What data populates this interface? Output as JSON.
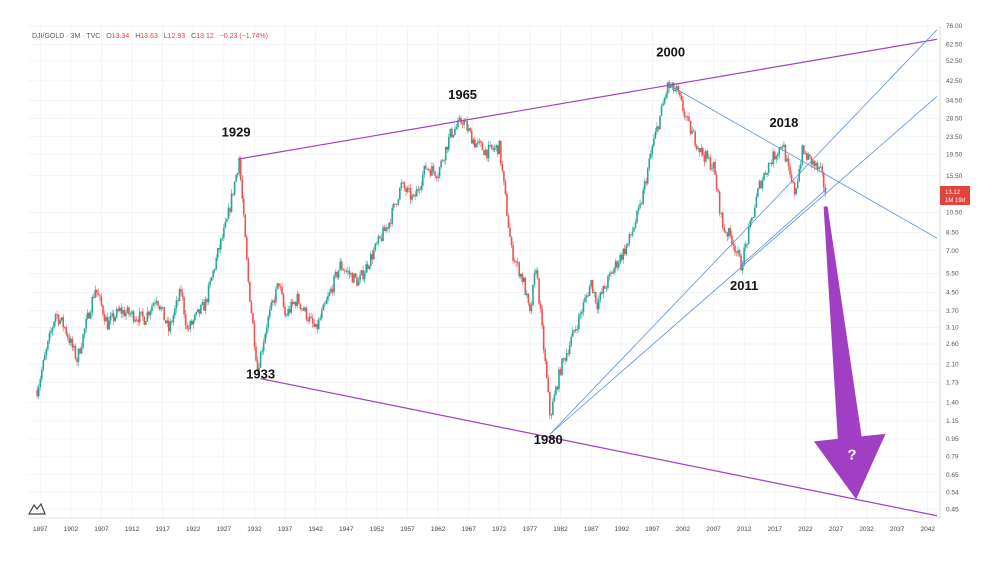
{
  "header": {
    "symbol": "DJI/GOLD · 3M · TVC",
    "o_label": "O",
    "o_value": "13.34",
    "h_label": "H",
    "h_value": "13.63",
    "l_label": "L",
    "l_value": "12.93",
    "c_label": "C",
    "c_value": "13.12",
    "change": "−0.23 (−1.74%)"
  },
  "price_badge": {
    "value": "13.12",
    "countdown": "1M 19d",
    "color": "#e0443c"
  },
  "question_mark": "?",
  "colors": {
    "up": "#26a69a",
    "down": "#ef5350",
    "channel": "#a040c8",
    "trend": "#5b8fe0",
    "arrow": "#9b35c0"
  },
  "chart_data": {
    "type": "candlestick",
    "title": "DJI/GOLD ratio",
    "x_range": [
      1895,
      2044
    ],
    "y_scale": "log",
    "y_range": [
      0.41,
      76
    ],
    "y_ticks": [
      "76.00",
      "62.50",
      "52.50",
      "42.50",
      "34.50",
      "28.50",
      "23.50",
      "19.50",
      "15.50",
      "13.12",
      "10.50",
      "8.50",
      "7.00",
      "5.50",
      "4.50",
      "3.70",
      "3.10",
      "2.60",
      "2.10",
      "1.73",
      "1.40",
      "1.15",
      "0.95",
      "0.79",
      "0.65",
      "0.54",
      "0.45"
    ],
    "y_tick_values": [
      76,
      62.5,
      52.5,
      42.5,
      34.5,
      28.5,
      23.5,
      19.5,
      15.5,
      13.12,
      10.5,
      8.5,
      7.0,
      5.5,
      4.5,
      3.7,
      3.1,
      2.6,
      2.1,
      1.73,
      1.4,
      1.15,
      0.95,
      0.79,
      0.65,
      0.54,
      0.45
    ],
    "x_ticks": [
      "1897",
      "1902",
      "1907",
      "1912",
      "1917",
      "1922",
      "1927",
      "1932",
      "1937",
      "1942",
      "1947",
      "1952",
      "1957",
      "1962",
      "1967",
      "1972",
      "1977",
      "1982",
      "1987",
      "1992",
      "1997",
      "2002",
      "2007",
      "2012",
      "2017",
      "2022",
      "2027",
      "2032",
      "2037",
      "2042"
    ],
    "x_tick_values": [
      1897,
      1902,
      1907,
      1912,
      1917,
      1922,
      1927,
      1932,
      1937,
      1942,
      1947,
      1952,
      1957,
      1962,
      1967,
      1972,
      1977,
      1982,
      1987,
      1992,
      1997,
      2002,
      2007,
      2012,
      2017,
      2022,
      2027,
      2032,
      2037,
      2042
    ],
    "anchor_points": [
      {
        "year": 1896.5,
        "value": 1.6
      },
      {
        "year": 1899.5,
        "value": 3.6
      },
      {
        "year": 1901,
        "value": 3.1
      },
      {
        "year": 1903,
        "value": 2.2
      },
      {
        "year": 1906,
        "value": 4.7
      },
      {
        "year": 1908,
        "value": 3.2
      },
      {
        "year": 1910,
        "value": 3.7
      },
      {
        "year": 1914,
        "value": 3.4
      },
      {
        "year": 1916,
        "value": 4.3
      },
      {
        "year": 1918,
        "value": 3.0
      },
      {
        "year": 1920,
        "value": 4.6
      },
      {
        "year": 1921,
        "value": 3.0
      },
      {
        "year": 1924,
        "value": 4.0
      },
      {
        "year": 1926,
        "value": 6.8
      },
      {
        "year": 1927.5,
        "value": 9.5
      },
      {
        "year": 1929.5,
        "value": 18.5
      },
      {
        "year": 1931,
        "value": 5.0
      },
      {
        "year": 1932.5,
        "value": 2.0
      },
      {
        "year": 1934,
        "value": 3.2
      },
      {
        "year": 1936,
        "value": 5.0
      },
      {
        "year": 1937,
        "value": 3.5
      },
      {
        "year": 1939,
        "value": 4.2
      },
      {
        "year": 1942,
        "value": 3.0
      },
      {
        "year": 1944,
        "value": 4.2
      },
      {
        "year": 1946,
        "value": 6.0
      },
      {
        "year": 1949,
        "value": 5.0
      },
      {
        "year": 1951,
        "value": 6.5
      },
      {
        "year": 1954,
        "value": 9.5
      },
      {
        "year": 1956,
        "value": 14.0
      },
      {
        "year": 1958,
        "value": 12.0
      },
      {
        "year": 1960,
        "value": 17.0
      },
      {
        "year": 1962,
        "value": 16.0
      },
      {
        "year": 1964,
        "value": 24.0
      },
      {
        "year": 1966,
        "value": 28.0
      },
      {
        "year": 1968,
        "value": 22.0
      },
      {
        "year": 1970,
        "value": 20.0
      },
      {
        "year": 1972,
        "value": 21.0
      },
      {
        "year": 1974,
        "value": 7.0
      },
      {
        "year": 1976,
        "value": 5.0
      },
      {
        "year": 1977,
        "value": 3.5
      },
      {
        "year": 1978,
        "value": 6.0
      },
      {
        "year": 1980.3,
        "value": 1.2
      },
      {
        "year": 1982,
        "value": 2.0
      },
      {
        "year": 1985,
        "value": 3.4
      },
      {
        "year": 1987,
        "value": 5.0
      },
      {
        "year": 1988,
        "value": 4.0
      },
      {
        "year": 1991,
        "value": 6.0
      },
      {
        "year": 1993,
        "value": 7.5
      },
      {
        "year": 1995,
        "value": 11.0
      },
      {
        "year": 1997,
        "value": 21.0
      },
      {
        "year": 1999.5,
        "value": 40.0
      },
      {
        "year": 2001,
        "value": 38.0
      },
      {
        "year": 2003,
        "value": 26.0
      },
      {
        "year": 2005,
        "value": 20.0
      },
      {
        "year": 2007,
        "value": 17.0
      },
      {
        "year": 2008.5,
        "value": 9.0
      },
      {
        "year": 2010,
        "value": 8.0
      },
      {
        "year": 2011.5,
        "value": 6.0
      },
      {
        "year": 2013,
        "value": 9.0
      },
      {
        "year": 2014.5,
        "value": 14.0
      },
      {
        "year": 2016,
        "value": 17.5
      },
      {
        "year": 2018.3,
        "value": 22.0
      },
      {
        "year": 2019.5,
        "value": 15.0
      },
      {
        "year": 2020.3,
        "value": 13.0
      },
      {
        "year": 2021.5,
        "value": 20.0
      },
      {
        "year": 2023,
        "value": 18.0
      },
      {
        "year": 2024.5,
        "value": 16.0
      },
      {
        "year": 2025.3,
        "value": 13.12
      }
    ],
    "trend_lines": [
      {
        "name": "upper-channel",
        "from": {
          "year": 1929.3,
          "value": 18.5
        },
        "to": {
          "year": 2043.5,
          "value": 66
        }
      },
      {
        "name": "lower-channel",
        "from": {
          "year": 1933,
          "value": 1.8
        },
        "to": {
          "year": 2043.5,
          "value": 0.42
        }
      },
      {
        "name": "resistance-2000",
        "from": {
          "year": 1999.5,
          "value": 41
        },
        "to": {
          "year": 2043.5,
          "value": 8.0
        }
      },
      {
        "name": "support-1980-steep",
        "from": {
          "year": 1980.3,
          "value": 1.0
        },
        "to": {
          "year": 2043.5,
          "value": 73
        }
      },
      {
        "name": "support-1980-mid",
        "from": {
          "year": 1980.3,
          "value": 1.0
        },
        "to": {
          "year": 2043.5,
          "value": 36
        }
      },
      {
        "name": "support-2011",
        "from": {
          "year": 2011.5,
          "value": 6.0
        },
        "to": {
          "year": 2025.5,
          "value": 13.5
        }
      }
    ],
    "annotations": [
      {
        "label": "1929",
        "year": 1929,
        "value": 23.5
      },
      {
        "label": "1933",
        "year": 1933,
        "value": 1.8
      },
      {
        "label": "1965",
        "year": 1966,
        "value": 35
      },
      {
        "label": "1980",
        "year": 1980,
        "value": 0.9
      },
      {
        "label": "2000",
        "year": 2000,
        "value": 55
      },
      {
        "label": "2011",
        "year": 2012,
        "value": 4.6
      },
      {
        "label": "2018",
        "year": 2018.5,
        "value": 26
      }
    ],
    "forecast_arrow": {
      "from": {
        "year": 2025.3,
        "value": 11.2
      },
      "to": {
        "year": 2030.3,
        "value": 0.5
      }
    }
  }
}
